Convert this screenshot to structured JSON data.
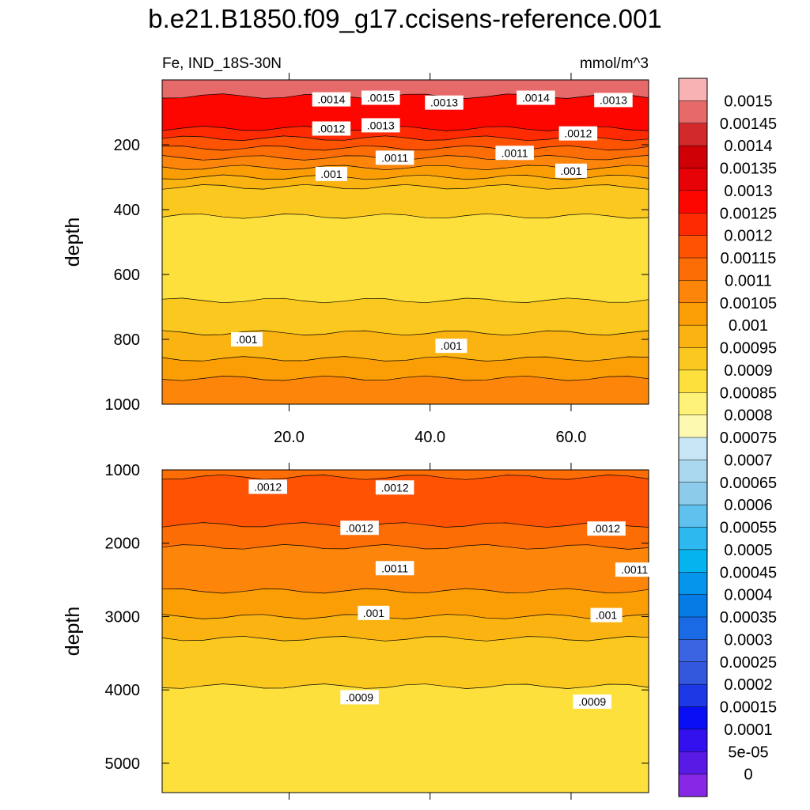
{
  "title": "b.e21.B1850.f09_g17.ccisens-reference.001",
  "subtitle_left": "Fe, IND_18S-30N",
  "subtitle_right": "mmol/m^3",
  "chart_data": [
    {
      "type": "contour",
      "panel": "upper",
      "xlabel": "",
      "ylabel": "depth",
      "xlim": [
        2,
        71
      ],
      "ylim": [
        1000,
        0
      ],
      "x_ticks": [
        "20.0",
        "40.0",
        "60.0"
      ],
      "x_tick_values": [
        20,
        40,
        60
      ],
      "y_ticks": [
        "200",
        "400",
        "600",
        "800",
        "1000"
      ],
      "y_tick_values": [
        200,
        400,
        600,
        800,
        1000
      ],
      "bands": [
        {
          "depth_top": 0,
          "depth_bottom": 50,
          "value": 0.0015
        },
        {
          "depth_top": 50,
          "depth_bottom": 150,
          "value": 0.0013
        },
        {
          "depth_top": 150,
          "depth_bottom": 180,
          "value": 0.00125
        },
        {
          "depth_top": 180,
          "depth_bottom": 210,
          "value": 0.0012
        },
        {
          "depth_top": 210,
          "depth_bottom": 240,
          "value": 0.00115
        },
        {
          "depth_top": 240,
          "depth_bottom": 270,
          "value": 0.0011
        },
        {
          "depth_top": 270,
          "depth_bottom": 300,
          "value": 0.00105
        },
        {
          "depth_top": 300,
          "depth_bottom": 330,
          "value": 0.001
        },
        {
          "depth_top": 330,
          "depth_bottom": 420,
          "value": 0.00095
        },
        {
          "depth_top": 420,
          "depth_bottom": 680,
          "value": 0.0009
        },
        {
          "depth_top": 680,
          "depth_bottom": 780,
          "value": 0.00095
        },
        {
          "depth_top": 780,
          "depth_bottom": 860,
          "value": 0.001
        },
        {
          "depth_top": 860,
          "depth_bottom": 920,
          "value": 0.00105
        },
        {
          "depth_top": 920,
          "depth_bottom": 1000,
          "value": 0.0011
        }
      ],
      "contour_labels": [
        {
          "text": ".0014",
          "x": 26,
          "depth": 60
        },
        {
          "text": ".0015",
          "x": 33,
          "depth": 55
        },
        {
          "text": ".0013",
          "x": 42,
          "depth": 70
        },
        {
          "text": ".0014",
          "x": 55,
          "depth": 55
        },
        {
          "text": ".0013",
          "x": 66,
          "depth": 62
        },
        {
          "text": ".0012",
          "x": 26,
          "depth": 150
        },
        {
          "text": ".0013",
          "x": 33,
          "depth": 140
        },
        {
          "text": ".0012",
          "x": 61,
          "depth": 165
        },
        {
          "text": ".0011",
          "x": 35,
          "depth": 240
        },
        {
          "text": ".0011",
          "x": 52,
          "depth": 225
        },
        {
          "text": ".001",
          "x": 26,
          "depth": 290
        },
        {
          "text": ".001",
          "x": 60,
          "depth": 280
        },
        {
          "text": ".001",
          "x": 14,
          "depth": 800
        },
        {
          "text": ".001",
          "x": 43,
          "depth": 820
        }
      ]
    },
    {
      "type": "contour",
      "panel": "lower",
      "xlabel": "",
      "ylabel": "depth",
      "xlim": [
        2,
        71
      ],
      "ylim": [
        5400,
        1000
      ],
      "y_ticks": [
        "1000",
        "2000",
        "3000",
        "4000",
        "5000"
      ],
      "y_tick_values": [
        1000,
        2000,
        3000,
        4000,
        5000
      ],
      "bands": [
        {
          "depth_top": 1000,
          "depth_bottom": 1100,
          "value": 0.00115
        },
        {
          "depth_top": 1100,
          "depth_bottom": 1750,
          "value": 0.0012
        },
        {
          "depth_top": 1750,
          "depth_bottom": 2050,
          "value": 0.00115
        },
        {
          "depth_top": 2050,
          "depth_bottom": 2650,
          "value": 0.0011
        },
        {
          "depth_top": 2650,
          "depth_bottom": 3000,
          "value": 0.00105
        },
        {
          "depth_top": 3000,
          "depth_bottom": 3300,
          "value": 0.001
        },
        {
          "depth_top": 3300,
          "depth_bottom": 3950,
          "value": 0.00095
        },
        {
          "depth_top": 3950,
          "depth_bottom": 5400,
          "value": 0.0009
        }
      ],
      "contour_labels": [
        {
          "text": ".0012",
          "x": 17,
          "depth": 1230
        },
        {
          "text": ".0012",
          "x": 35,
          "depth": 1240
        },
        {
          "text": ".0012",
          "x": 30,
          "depth": 1790
        },
        {
          "text": ".0012",
          "x": 65,
          "depth": 1800
        },
        {
          "text": ".0011",
          "x": 35,
          "depth": 2340
        },
        {
          "text": ".0011",
          "x": 69,
          "depth": 2360
        },
        {
          "text": ".001",
          "x": 32,
          "depth": 2950
        },
        {
          "text": ".001",
          "x": 65,
          "depth": 2980
        },
        {
          "text": ".0009",
          "x": 30,
          "depth": 4100
        },
        {
          "text": ".0009",
          "x": 63,
          "depth": 4160
        }
      ]
    }
  ],
  "colorbar": {
    "labels": [
      "0.0015",
      "0.00145",
      "0.0014",
      "0.00135",
      "0.0013",
      "0.00125",
      "0.0012",
      "0.00115",
      "0.0011",
      "0.00105",
      "0.001",
      "0.00095",
      "0.0009",
      "0.00085",
      "0.0008",
      "0.00075",
      "0.0007",
      "0.00065",
      "0.0006",
      "0.00055",
      "0.0005",
      "0.00045",
      "0.0004",
      "0.00035",
      "0.0003",
      "0.00025",
      "0.0002",
      "0.00015",
      "0.0001",
      "5e-05",
      "0"
    ],
    "colors": [
      "#f9b2b3",
      "#e76a6a",
      "#d22a2b",
      "#cf0006",
      "#e60206",
      "#fe0600",
      "#fe2a02",
      "#fe5302",
      "#fd6d05",
      "#fd850a",
      "#fb9e05",
      "#fbb311",
      "#fbc81f",
      "#fde03c",
      "#fef278",
      "#fef9b0",
      "#c7e5f4",
      "#a9d8ef",
      "#8dcbeb",
      "#5ec1ee",
      "#2db8ef",
      "#05b4ef",
      "#0596eb",
      "#057ce5",
      "#1b6ae5",
      "#3a64e1",
      "#3358de",
      "#1d38e5",
      "#0a0ef5",
      "#3311ee",
      "#5a1ae5",
      "#8628e5"
    ]
  }
}
